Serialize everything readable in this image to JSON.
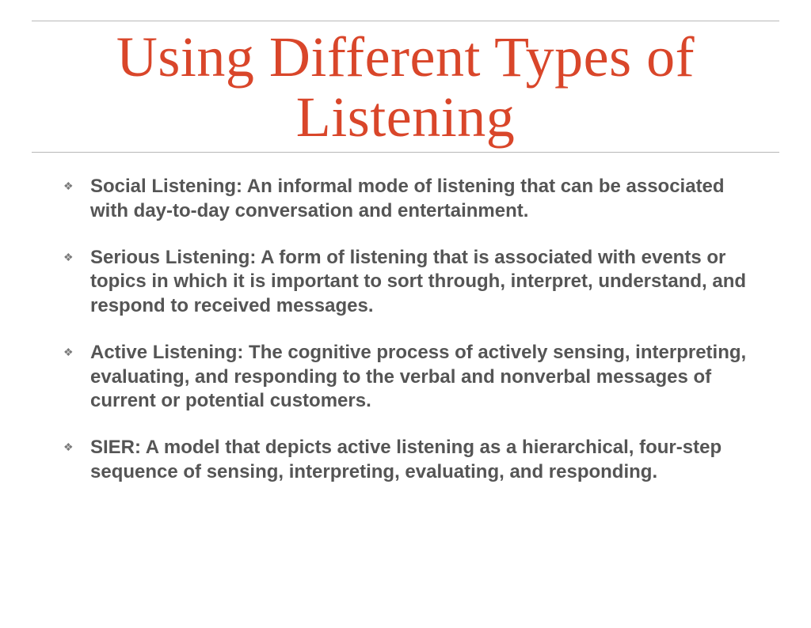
{
  "colors": {
    "title": "#d9462a",
    "body_text": "#555555",
    "rule": "#b8b8b8",
    "background": "#ffffff",
    "bullet": "#7a7a7a"
  },
  "typography": {
    "title_font": "Times New Roman",
    "title_size_pt": 54,
    "title_weight": 400,
    "body_font": "Arial",
    "body_size_pt": 18,
    "body_weight": 700,
    "bullet_glyph": "❖"
  },
  "title": "Using Different Types of Listening",
  "bullets": [
    "Social Listening:  An informal mode of listening that can be associated with day-to-day conversation and entertainment.",
    "Serious Listening:  A form of listening that is associated with events or topics in which it is important to sort through, interpret, understand, and respond to received messages.",
    "Active Listening:  The cognitive process of actively sensing, interpreting, evaluating, and responding to the verbal and nonverbal messages of current or potential customers.",
    "SIER:  A model that depicts active listening as a hierarchical, four-step sequence of sensing, interpreting, evaluating, and responding."
  ]
}
